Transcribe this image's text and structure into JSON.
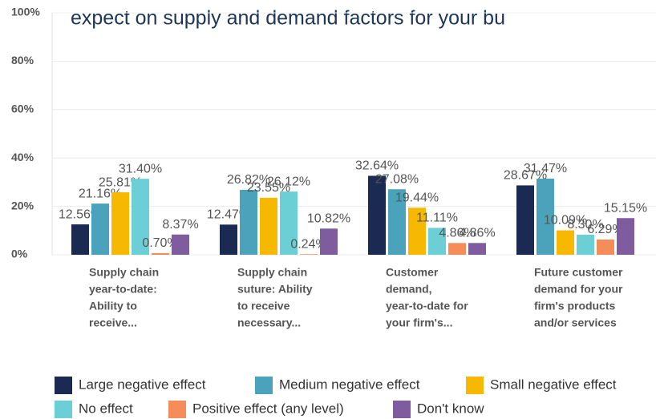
{
  "chart_data": {
    "type": "bar",
    "title": "expect on supply and demand factors for your bu",
    "categories": [
      [
        "Supply chain",
        "year-to-date:",
        "Ability to",
        "receive..."
      ],
      [
        "Supply chain",
        "suture: Ability",
        "to receive",
        "necessary..."
      ],
      [
        "Customer",
        "demand,",
        "year-to-date for",
        "your firm's..."
      ],
      [
        "Future customer",
        "demand for your",
        "firm's products",
        "and/or services"
      ]
    ],
    "series": [
      {
        "name": "Large negative effect",
        "color": "#1b2a52",
        "values": [
          12.56,
          12.47,
          32.64,
          28.67
        ],
        "value_labels": [
          "12.56%",
          "12.47%",
          "32.64%",
          "28.67%"
        ]
      },
      {
        "name": "Medium negative effect",
        "color": "#4aa3bb",
        "values": [
          21.16,
          26.82,
          27.08,
          31.47
        ],
        "value_labels": [
          "21.16%",
          "26.82%",
          "27.08%",
          "31.47%"
        ]
      },
      {
        "name": "Small negative effect",
        "color": "#f6b800",
        "values": [
          25.81,
          23.55,
          19.44,
          10.09
        ],
        "value_labels": [
          "25.81%",
          "23.55%",
          "19.44%",
          "10.09%"
        ]
      },
      {
        "name": "No effect",
        "color": "#6dcfd6",
        "values": [
          31.4,
          26.12,
          11.11,
          8.3
        ],
        "value_labels": [
          "31.40%",
          "26.12%",
          "11.11%",
          "8.30%"
        ]
      },
      {
        "name": "Positive effect (any level)",
        "color": "#f58d5a",
        "values": [
          0.7,
          0.24,
          4.86,
          6.29
        ],
        "value_labels": [
          "0.70%",
          "0.24%",
          "4.86%",
          "6.29%"
        ]
      },
      {
        "name": "Don't know",
        "color": "#7f5c9e",
        "values": [
          8.37,
          10.82,
          4.86,
          15.15
        ],
        "value_labels": [
          "8.37%",
          "10.82%",
          "4.86%",
          "15.15%"
        ]
      }
    ],
    "ylim": [
      0,
      100
    ],
    "yticks": [
      {
        "value": 0,
        "label": "0%"
      },
      {
        "value": 20,
        "label": "20%"
      },
      {
        "value": 40,
        "label": "40%"
      },
      {
        "value": 60,
        "label": "60%"
      },
      {
        "value": 80,
        "label": "80%"
      },
      {
        "value": 100,
        "label": "100%"
      }
    ],
    "grid": true
  }
}
